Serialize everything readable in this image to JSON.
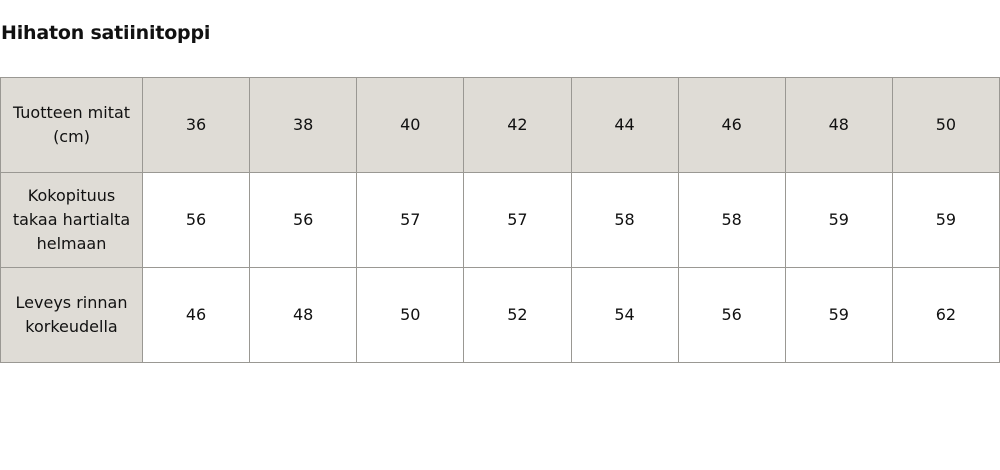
{
  "title": "Hihaton satiinitoppi",
  "colors": {
    "header_bg": "#dfdcd6",
    "border": "#9a9893"
  },
  "table": {
    "header": {
      "label": "Tuotteen mitat (cm)",
      "sizes": [
        "36",
        "38",
        "40",
        "42",
        "44",
        "46",
        "48",
        "50"
      ]
    },
    "rows": [
      {
        "label": "Kokopituus takaa hartialta helmaan",
        "values": [
          "56",
          "56",
          "57",
          "57",
          "58",
          "58",
          "59",
          "59"
        ]
      },
      {
        "label": "Leveys rinnan korkeudella",
        "values": [
          "46",
          "48",
          "50",
          "52",
          "54",
          "56",
          "59",
          "62"
        ]
      }
    ]
  }
}
